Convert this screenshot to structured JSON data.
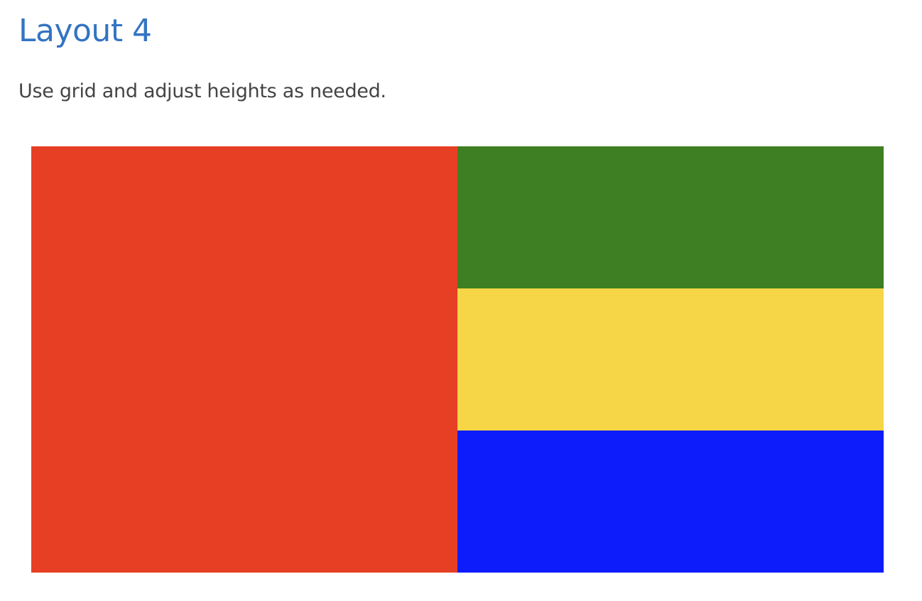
{
  "page": {
    "title": "Layout 4",
    "instruction": "Use grid and adjust heights as needed.",
    "title_color": "#3374c2",
    "text_color": "#444444"
  },
  "grid": {
    "blocks": [
      {
        "name": "left-block",
        "color": "#e63f23"
      },
      {
        "name": "top-right-block",
        "color": "#3d7f22"
      },
      {
        "name": "middle-right-block",
        "color": "#f6d547"
      },
      {
        "name": "bottom-right-block",
        "color": "#0c1cfb"
      }
    ]
  }
}
